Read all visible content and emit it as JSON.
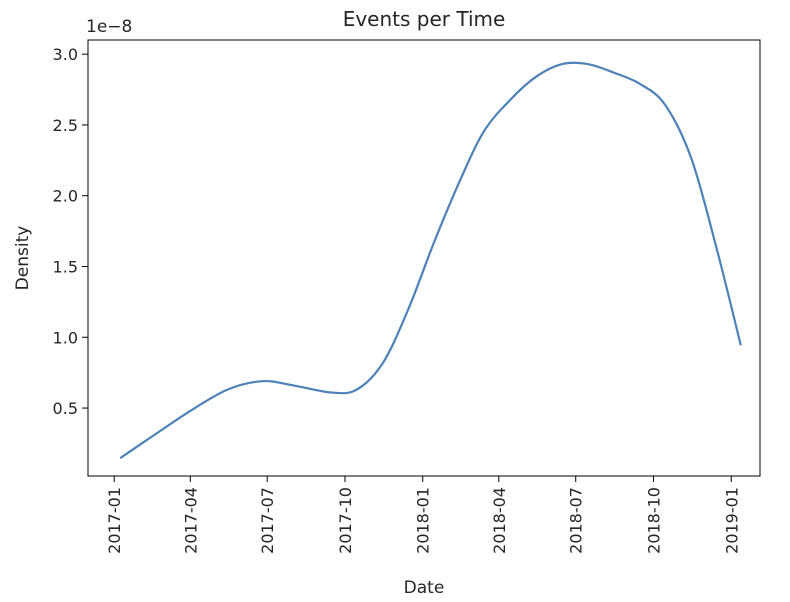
{
  "chart_data": {
    "type": "line",
    "title": "Events per Time",
    "xlabel": "Date",
    "ylabel": "Density",
    "y_offset_text": "1e−8",
    "y_multiplier": 1e-08,
    "x_tick_labels": [
      "2017-01",
      "2017-04",
      "2017-07",
      "2017-10",
      "2018-01",
      "2018-04",
      "2018-07",
      "2018-10",
      "2019-01"
    ],
    "y_tick_labels": [
      "0.5",
      "1.0",
      "1.5",
      "2.0",
      "2.5",
      "3.0"
    ],
    "y_ticks": [
      0.5,
      1.0,
      1.5,
      2.0,
      2.5,
      3.0
    ],
    "xlim": [
      "2016-12-01",
      "2019-02-04"
    ],
    "ylim": [
      0.02,
      3.1
    ],
    "grid": false,
    "line_color": "#4c82b8",
    "series": [
      {
        "x": [
          "2017-01-09",
          "2017-02-15",
          "2017-04-01",
          "2017-05-15",
          "2017-06-25",
          "2017-08-01",
          "2017-09-15",
          "2017-10-15",
          "2017-11-15",
          "2017-12-15",
          "2018-01-15",
          "2018-02-15",
          "2018-03-15",
          "2018-04-15",
          "2018-05-15",
          "2018-06-15",
          "2018-07-15",
          "2018-08-15",
          "2018-09-15",
          "2018-10-15",
          "2018-11-15",
          "2018-12-15",
          "2019-01-12"
        ],
        "values": [
          0.15,
          0.3,
          0.48,
          0.63,
          0.69,
          0.66,
          0.61,
          0.63,
          0.82,
          1.2,
          1.68,
          2.12,
          2.46,
          2.68,
          2.84,
          2.93,
          2.93,
          2.87,
          2.79,
          2.64,
          2.26,
          1.62,
          0.95
        ]
      }
    ]
  }
}
